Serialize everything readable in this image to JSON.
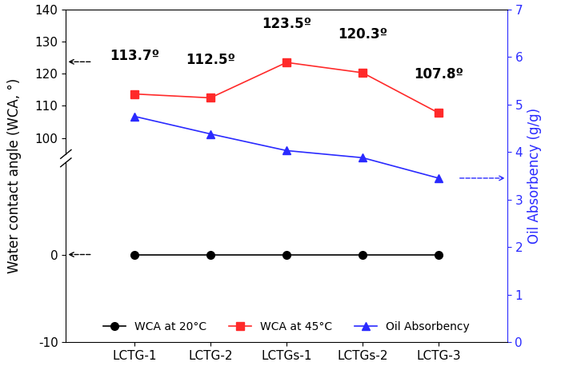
{
  "chart_data": [
    {
      "type": "line",
      "categories": [
        "LCTG-1",
        "LCTG-2",
        "LCTGs-1",
        "LCTGs-2",
        "LCTG-3"
      ],
      "ylim": [
        -10,
        10.5
      ],
      "yticks": [
        -10,
        0
      ],
      "legend": "lower center",
      "series": [
        {
          "name": "WCA at 20°C",
          "color": "#000000",
          "marker": "o",
          "line_style": "solid",
          "values": [
            0,
            0,
            0,
            0,
            0
          ]
        }
      ]
    },
    {
      "type": "line",
      "ylabel": "Water contact angle (WCA, °)",
      "y2label": "Oil Absorbency (g/g)",
      "categories": [
        "LCTG-1",
        "LCTG-2",
        "LCTGs-1",
        "LCTGs-2",
        "LCTG-3"
      ],
      "ylim": [
        95,
        140
      ],
      "yticks": [
        100,
        110,
        120,
        130,
        140
      ],
      "y2lim": [
        0,
        7
      ],
      "y2ticks": [
        0,
        1,
        2,
        3,
        4,
        5,
        6,
        7
      ],
      "series": [
        {
          "name": "WCA at 45°C",
          "color": "#ff2a2a",
          "marker": "s",
          "line_style": "solid",
          "values": [
            113.7,
            112.5,
            123.5,
            120.3,
            107.8
          ],
          "data_labels": true,
          "value_labels": [
            "113.7º",
            "112.5º",
            "123.5º",
            "120.3º",
            "107.8º"
          ]
        },
        {
          "name": "Oil Absorbency",
          "color": "#2a2aff",
          "marker": "^",
          "line_style": "solid",
          "axis": "y2",
          "values": [
            4.75,
            4.38,
            4.03,
            3.88,
            3.45
          ]
        }
      ]
    }
  ]
}
